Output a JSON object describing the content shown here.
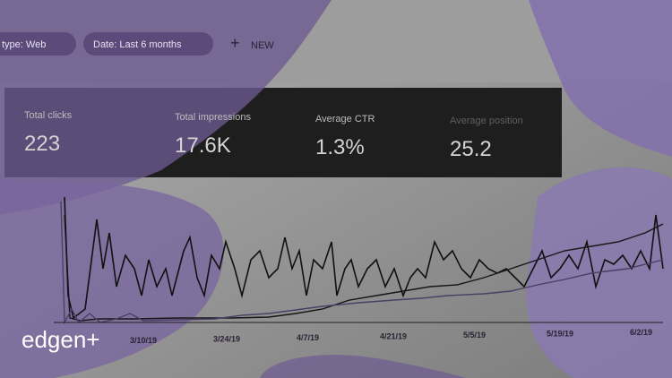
{
  "filters": [
    {
      "label": "type: Web"
    },
    {
      "label": "Date: Last 6 months"
    }
  ],
  "new_button": "NEW",
  "metrics": [
    {
      "label": "Total clicks",
      "value": "223"
    },
    {
      "label": "Total impressions",
      "value": "17.6K"
    },
    {
      "label": "Average CTR",
      "value": "1.3%"
    },
    {
      "label": "Average position",
      "value": "25.2"
    }
  ],
  "x_axis": [
    "3/10/19",
    "3/24/19",
    "4/7/19",
    "4/21/19",
    "5/5/19",
    "5/19/19",
    "6/2/19"
  ],
  "brand": "edgen+"
}
